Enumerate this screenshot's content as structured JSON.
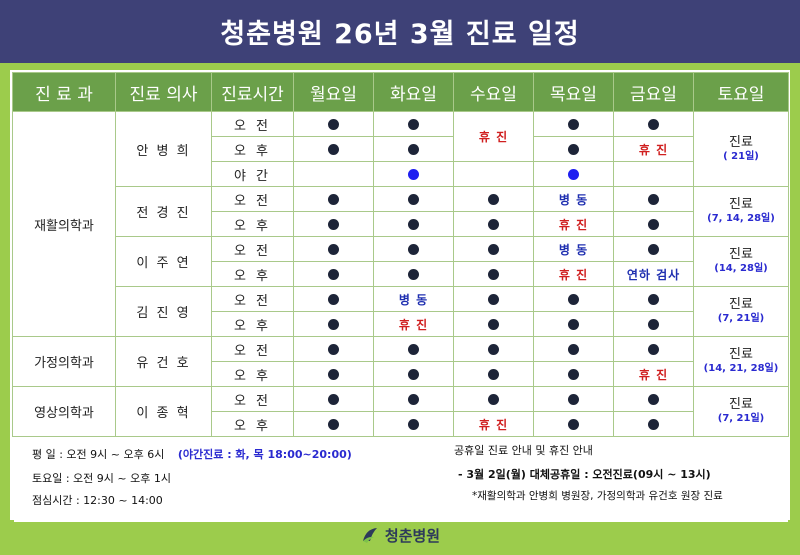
{
  "header": {
    "title": "청춘병원 26년 3월 진료 일정"
  },
  "table": {
    "headers": [
      "진 료 과",
      "진료 의사",
      "진료시간",
      "월요일",
      "화요일",
      "수요일",
      "목요일",
      "금요일",
      "토요일"
    ],
    "time_labels": {
      "am": "오 전",
      "pm": "오 후",
      "night": "야 간"
    },
    "marks": {
      "closed": "휴 진",
      "ward": "병 동",
      "yeonha": "연하 검사"
    },
    "departments": [
      "재활의학과",
      "가정의학과",
      "영상의학과"
    ],
    "doctors": [
      "안 병 희",
      "전 경 진",
      "이 주 연",
      "김 진 영",
      "유 건 호",
      "이 종 혁"
    ],
    "saturday": [
      {
        "label": "진료",
        "dates": "( 21일)"
      },
      {
        "label": "진료",
        "dates": "(7, 14, 28일)"
      },
      {
        "label": "진료",
        "dates": "(14, 28일)"
      },
      {
        "label": "진료",
        "dates": "(7, 21일)"
      },
      {
        "label": "진료",
        "dates": "(14, 21, 28일)"
      },
      {
        "label": "진료",
        "dates": "(7, 21일)"
      }
    ]
  },
  "info": {
    "weekday": "평    일 : 오전 9시 ~ 오후 6시",
    "night_note": "(야간진료 : 화, 목 18:00~20:00)",
    "saturday": "토요일 : 오전 9시 ~ 오후 1시",
    "lunch": "점심시간 : 12:30 ~ 14:00",
    "holiday_title": "공휴일 진료 안내 및 휴진 안내",
    "holiday_line": "- 3월 2일(월) 대체공휴일 : 오전진료(09시 ~ 13시)",
    "holiday_note": "*재활의학과 안병희 병원장, 가정의학과 유건호 원장 진료"
  },
  "footer": {
    "logo_text": "청춘병원"
  },
  "colors": {
    "header_bg": "#3e4177",
    "band": "#9ccc4c",
    "table_head": "#6ba04a",
    "dot": "#1d2438",
    "closed": "#d01f1f",
    "ward": "#1f2fb0"
  }
}
